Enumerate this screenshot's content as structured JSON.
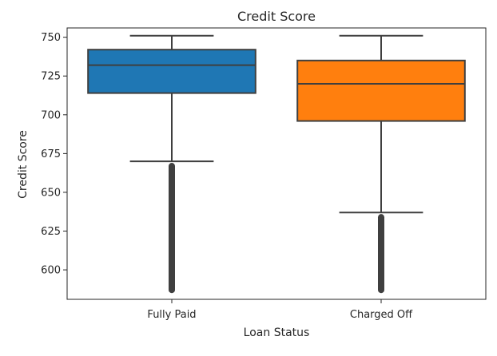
{
  "chart_data": {
    "type": "box",
    "title": "Credit Score",
    "xlabel": "Loan Status",
    "ylabel": "Credit Score",
    "ylim": [
      581,
      756
    ],
    "y_ticks": [
      600,
      625,
      650,
      675,
      700,
      725,
      750
    ],
    "categories": [
      "Fully Paid",
      "Charged Off"
    ],
    "colors": [
      "#1f77b4",
      "#ff7f0e"
    ],
    "grid": false,
    "legend": "none",
    "boxes": [
      {
        "category": "Fully Paid",
        "whisker_low": 670,
        "q1": 714,
        "median": 732,
        "q3": 742,
        "whisker_high": 751,
        "outliers_range": [
          585,
          669
        ]
      },
      {
        "category": "Charged Off",
        "whisker_low": 637,
        "q1": 696,
        "median": 720,
        "q3": 735,
        "whisker_high": 751,
        "outliers_range": [
          585,
          636
        ]
      }
    ]
  }
}
